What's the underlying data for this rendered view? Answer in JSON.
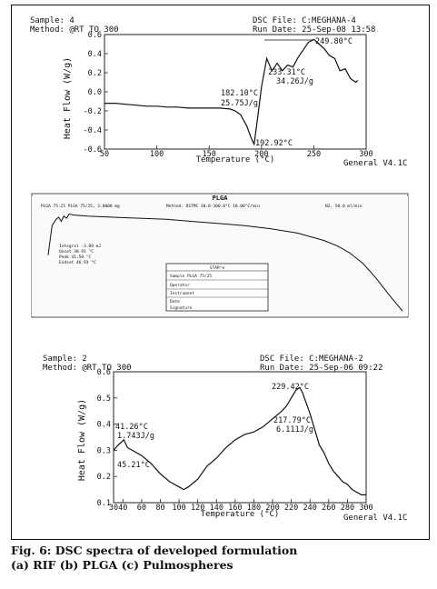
{
  "caption": {
    "line1": "Fig. 6: DSC spectra of developed formulation",
    "line2": "(a) RIF  (b) PLGA (c) Pulmospheres"
  },
  "panel_a": {
    "sample": "Sample: 4",
    "method": "Method: @RT TO 300",
    "file": "DSC File: C:MEGHANA-4",
    "run_date": "Run Date: 25-Sep-08 13:58",
    "footer": "General V4.1C",
    "annotations": [
      "249.80°C",
      "233.31°C",
      "34.26J/g",
      "182.10°C",
      "25.75J/g",
      "192.92°C"
    ]
  },
  "panel_b": {
    "title": "PLGA",
    "header_left": "PLGA 75:25 PLGA 75/25, 3.0000 mg",
    "header_mid": "Method: DSTMC 30.0-300.0°C 10.00°C/min",
    "header_right": "N2, 50.0 ml/min",
    "legend_rows": [
      "Integral -3.09 mJ",
      "Onset 38.91 °C",
      "Peak 41.50 °C",
      "Endset 46.93 °C"
    ],
    "stamp_lines": [
      "STAR^e",
      "Sample PLGA 75/25",
      "Operator",
      "Instrument",
      "Date",
      "Signature"
    ]
  },
  "panel_c": {
    "sample": "Sample: 2",
    "method": "Method: @RT TO 300",
    "file": "DSC File: C:MEGHANA-2",
    "run_date": "Run Date: 25-Sep-06 09:22",
    "footer": "General V4.1C",
    "annotations": [
      "229.42°C",
      "217.79°C",
      "6.111J/g",
      "41.26°C",
      "1.743J/g",
      "45.21°C"
    ]
  },
  "chart_data": [
    {
      "type": "line",
      "title": "",
      "xlabel": "Temperature (°C)",
      "ylabel": "Heat Flow (W/g)",
      "xlim": [
        50,
        300
      ],
      "ylim": [
        -0.6,
        0.6
      ],
      "x_ticks": [
        50,
        100,
        150,
        200,
        250,
        300
      ],
      "y_ticks": [
        -0.6,
        -0.4,
        -0.2,
        0.0,
        0.2,
        0.4,
        0.6
      ],
      "y_tick_labels": [
        "-0.6",
        "-0.4",
        "-0.2",
        "0.0",
        "0.2",
        "0.4",
        "0.6"
      ],
      "series": [
        {
          "x": [
            50,
            60,
            70,
            80,
            90,
            100,
            110,
            120,
            130,
            140,
            150,
            160,
            170,
            175,
            180,
            182,
            186,
            190,
            193,
            196,
            200,
            205,
            210,
            215,
            220,
            225,
            230,
            235,
            240,
            245,
            250,
            255,
            260,
            265,
            270,
            275,
            280,
            285,
            290,
            292
          ],
          "y": [
            -0.12,
            -0.12,
            -0.13,
            -0.14,
            -0.15,
            -0.15,
            -0.16,
            -0.16,
            -0.17,
            -0.17,
            -0.17,
            -0.17,
            -0.18,
            -0.2,
            -0.24,
            -0.28,
            -0.36,
            -0.48,
            -0.55,
            -0.3,
            0.05,
            0.35,
            0.22,
            0.3,
            0.22,
            0.28,
            0.26,
            0.36,
            0.44,
            0.52,
            0.55,
            0.5,
            0.45,
            0.38,
            0.35,
            0.22,
            0.24,
            0.14,
            0.1,
            0.12
          ]
        }
      ]
    },
    {
      "type": "line",
      "title": "PLGA",
      "xlabel": "",
      "ylabel": "",
      "xlim": [
        30,
        300
      ],
      "ylim": [
        0,
        1
      ],
      "series": [
        {
          "x": [
            30,
            33,
            36,
            38,
            40,
            42,
            44,
            46,
            50,
            60,
            80,
            100,
            120,
            140,
            160,
            180,
            200,
            220,
            240,
            250,
            260,
            270,
            280,
            290,
            300
          ],
          "y": [
            0.58,
            0.86,
            0.92,
            0.94,
            0.9,
            0.95,
            0.93,
            0.97,
            0.96,
            0.95,
            0.94,
            0.93,
            0.92,
            0.9,
            0.88,
            0.86,
            0.83,
            0.79,
            0.72,
            0.67,
            0.6,
            0.5,
            0.36,
            0.2,
            0.05
          ]
        }
      ]
    },
    {
      "type": "line",
      "title": "",
      "xlabel": "Temperature (°C)",
      "ylabel": "Heat Flow (W/g)",
      "xlim": [
        30,
        300
      ],
      "ylim": [
        0.1,
        0.6
      ],
      "x_ticks": [
        30,
        40,
        60,
        80,
        100,
        120,
        140,
        160,
        180,
        200,
        220,
        240,
        260,
        280,
        300
      ],
      "y_ticks": [
        0.1,
        0.2,
        0.3,
        0.4,
        0.5,
        0.6
      ],
      "y_tick_labels": [
        "0.1",
        "0.2",
        "0.3",
        "0.4",
        "0.5",
        "0.6"
      ],
      "series": [
        {
          "x": [
            30,
            35,
            38,
            41,
            45,
            50,
            60,
            70,
            80,
            90,
            100,
            105,
            110,
            120,
            130,
            140,
            150,
            160,
            170,
            180,
            190,
            200,
            210,
            215,
            220,
            225,
            229,
            232,
            236,
            240,
            245,
            250,
            255,
            260,
            265,
            270,
            275,
            280,
            285,
            290,
            295,
            300
          ],
          "y": [
            0.3,
            0.32,
            0.33,
            0.34,
            0.31,
            0.3,
            0.28,
            0.25,
            0.21,
            0.18,
            0.16,
            0.15,
            0.16,
            0.19,
            0.24,
            0.27,
            0.31,
            0.34,
            0.36,
            0.37,
            0.39,
            0.42,
            0.45,
            0.47,
            0.5,
            0.53,
            0.54,
            0.52,
            0.48,
            0.44,
            0.38,
            0.32,
            0.29,
            0.25,
            0.22,
            0.2,
            0.18,
            0.17,
            0.15,
            0.14,
            0.13,
            0.13
          ]
        }
      ]
    }
  ]
}
